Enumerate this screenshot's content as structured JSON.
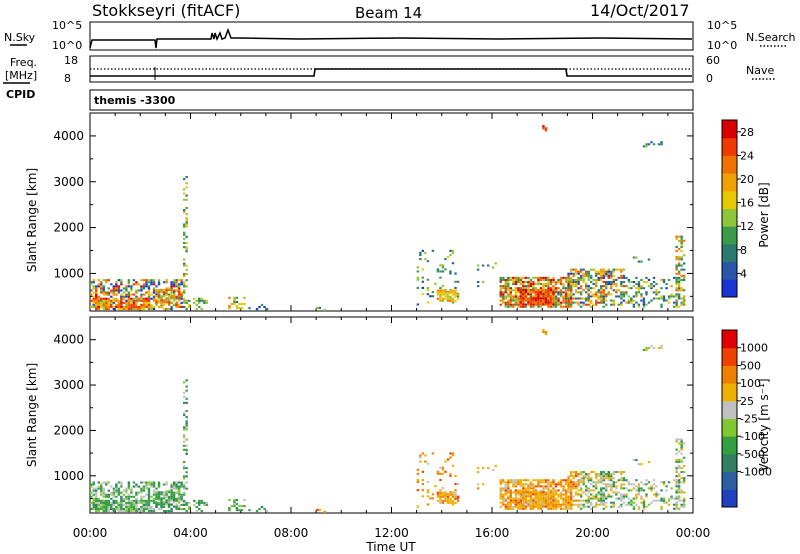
{
  "header": {
    "station": "Stokkseyri (fitACF)",
    "beam": "Beam 14",
    "date": "14/Oct/2017"
  },
  "nsky_panel": {
    "left_label": "N.Sky",
    "right_label": "N.Search",
    "left_ticks": [
      "10^5",
      "10^0"
    ],
    "right_ticks": [
      "10^5",
      "10^0"
    ]
  },
  "freq_panel": {
    "left_label_top": "Freq.",
    "left_label_unit": "[MHz]",
    "cpid_label": "CPID",
    "right_label": "Nave",
    "left_ticks": [
      "18",
      "8"
    ],
    "right_ticks": [
      "60",
      "0"
    ],
    "cpid_text": "themis -3300"
  },
  "colors": {
    "power_scale": [
      "#1a35d6",
      "#2a55a8",
      "#2a7a70",
      "#3a9a4a",
      "#8ec63a",
      "#e8c800",
      "#f0a000",
      "#f07000",
      "#ee3a00",
      "#d80000"
    ],
    "velocity_scale": [
      "#2040c0",
      "#2a60a0",
      "#2f8060",
      "#30a040",
      "#80c830",
      "#c0c0c0",
      "#f0b000",
      "#f08000",
      "#f04000",
      "#e00000"
    ]
  },
  "chart_data": [
    {
      "type": "heatmap",
      "title": "Power",
      "ylabel": "Slant Range [km]",
      "xlabel": "Time UT",
      "x_ticks": [
        "00:00",
        "04:00",
        "08:00",
        "12:00",
        "16:00",
        "20:00",
        "00:00"
      ],
      "y_ticks": [
        1000,
        2000,
        3000,
        4000
      ],
      "ylim": [
        180,
        4500
      ],
      "colorbar": {
        "label": "Power [dB]",
        "ticks": [
          "4",
          "8",
          "12",
          "16",
          "20",
          "24",
          "28"
        ],
        "range": [
          0,
          30
        ]
      }
    },
    {
      "type": "heatmap",
      "title": "Velocity",
      "ylabel": "Slant Range [km]",
      "xlabel": "Time UT",
      "x_ticks": [
        "00:00",
        "04:00",
        "08:00",
        "12:00",
        "16:00",
        "20:00",
        "00:00"
      ],
      "y_ticks": [
        1000,
        2000,
        3000,
        4000
      ],
      "ylim": [
        180,
        4500
      ],
      "colorbar": {
        "label": "Velocity [m s⁻¹]",
        "ticks": [
          "1000",
          "500",
          "100",
          "25",
          "-25",
          "-100",
          "-500",
          "-1000"
        ]
      }
    }
  ]
}
